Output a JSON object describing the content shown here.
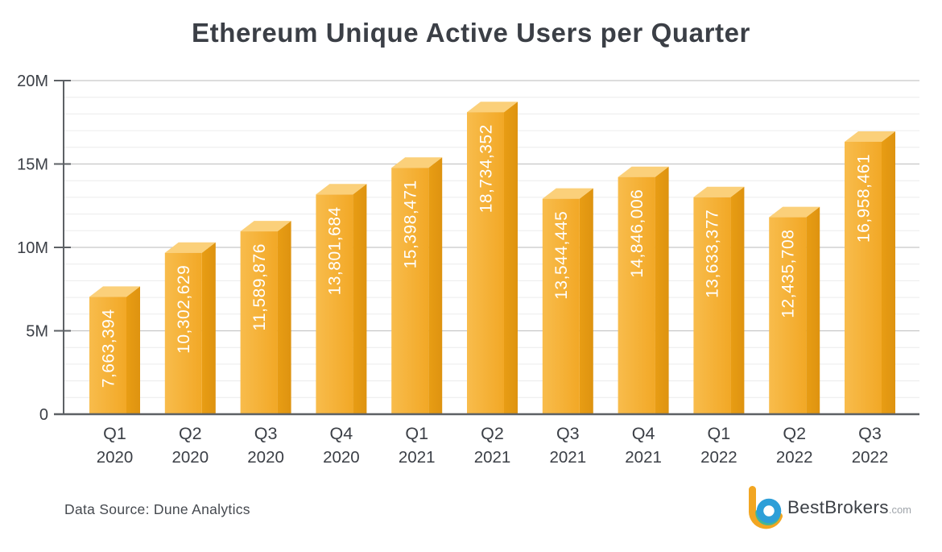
{
  "title": "Ethereum Unique Active Users per Quarter",
  "footer": {
    "data_source": "Data Source: Dune Analytics"
  },
  "logo": {
    "name": "BestBrokers",
    "tld": ".com",
    "icon_colors": {
      "yellow": "#F2A622",
      "teal": "#45B694",
      "blue": "#2D9FD8"
    }
  },
  "chart_data": {
    "type": "bar",
    "title": "Ethereum Unique Active Users per Quarter",
    "categories": [
      {
        "quarter": "Q1",
        "year": "2020"
      },
      {
        "quarter": "Q2",
        "year": "2020"
      },
      {
        "quarter": "Q3",
        "year": "2020"
      },
      {
        "quarter": "Q4",
        "year": "2020"
      },
      {
        "quarter": "Q1",
        "year": "2021"
      },
      {
        "quarter": "Q2",
        "year": "2021"
      },
      {
        "quarter": "Q3",
        "year": "2021"
      },
      {
        "quarter": "Q4",
        "year": "2021"
      },
      {
        "quarter": "Q1",
        "year": "2022"
      },
      {
        "quarter": "Q2",
        "year": "2022"
      },
      {
        "quarter": "Q3",
        "year": "2022"
      }
    ],
    "values": [
      7663394,
      10302629,
      11589876,
      13801684,
      15398471,
      18734352,
      13544445,
      14846006,
      13633377,
      12435708,
      16958461
    ],
    "value_labels": [
      "7,663,394",
      "10,302,629",
      "11,589,876",
      "13,801,684",
      "15,398,471",
      "18,734,352",
      "13,544,445",
      "14,846,006",
      "13,633,377",
      "12,435,708",
      "16,958,461"
    ],
    "xlabel": "",
    "ylabel": "",
    "y_ticks": [
      {
        "value": 0,
        "label": "0"
      },
      {
        "value": 5000000,
        "label": "5M"
      },
      {
        "value": 10000000,
        "label": "10M"
      },
      {
        "value": 15000000,
        "label": "15M"
      },
      {
        "value": 20000000,
        "label": "20M"
      }
    ],
    "ylim": [
      0,
      20000000
    ],
    "grid": {
      "major_every": 5000000,
      "minor_every": 1000000,
      "legend": "none"
    },
    "colors": {
      "bar_front_left": "#F8BC4C",
      "bar_front_right": "#F2A826",
      "bar_side": "#DE9310",
      "bar_top": "#FBD07A",
      "value_text": "#ffffff",
      "axis": "#5d6165",
      "major_grid": "#c6c6c6",
      "minor_grid": "#ececec",
      "tick_text": "#3b3f46",
      "x_text": "#3b3f46"
    }
  }
}
